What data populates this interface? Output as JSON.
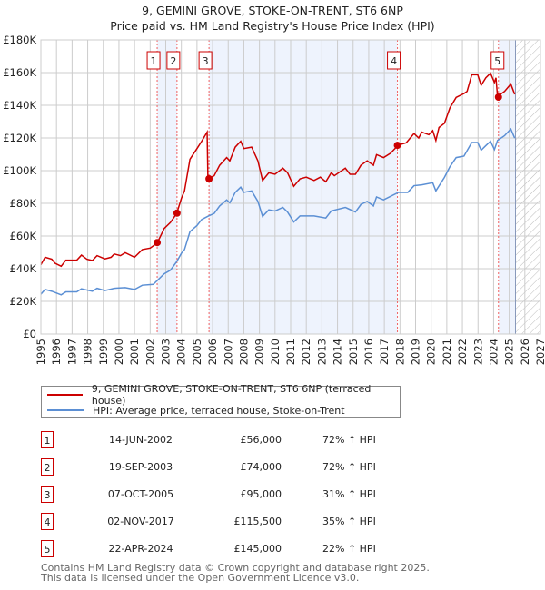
{
  "title": "9, GEMINI GROVE, STOKE-ON-TRENT, ST6 6NP",
  "subtitle": "Price paid vs. HM Land Registry's House Price Index (HPI)",
  "chart_data": {
    "type": "line",
    "title": "9, GEMINI GROVE, STOKE-ON-TRENT, ST6 6NP",
    "subtitle": "Price paid vs. HM Land Registry's House Price Index (HPI)",
    "xlim": [
      1995,
      2027
    ],
    "ylim": [
      0,
      180000
    ],
    "y_ticks": [
      0,
      20000,
      40000,
      60000,
      80000,
      100000,
      120000,
      140000,
      160000,
      180000
    ],
    "y_tick_labels": [
      "£0",
      "£20K",
      "£40K",
      "£60K",
      "£80K",
      "£100K",
      "£120K",
      "£140K",
      "£160K",
      "£180K"
    ],
    "x_ticks": [
      1995,
      1996,
      1997,
      1998,
      1999,
      2000,
      2001,
      2002,
      2003,
      2004,
      2005,
      2006,
      2007,
      2008,
      2009,
      2010,
      2011,
      2012,
      2013,
      2014,
      2015,
      2016,
      2017,
      2018,
      2019,
      2020,
      2021,
      2022,
      2023,
      2024,
      2025,
      2026,
      2027
    ],
    "grid": true,
    "forecast_hatch_from": 2025.4,
    "series": [
      {
        "name": "9, GEMINI GROVE, STOKE-ON-TRENT, ST6 6NP (terraced house)",
        "color": "#cc0000",
        "points": [
          [
            1995,
            42400
          ],
          [
            1995.27,
            47000
          ],
          [
            1995.7,
            45800
          ],
          [
            1995.9,
            43400
          ],
          [
            1996.3,
            41500
          ],
          [
            1996.6,
            45200
          ],
          [
            1997.3,
            45200
          ],
          [
            1997.6,
            48300
          ],
          [
            1997.95,
            45800
          ],
          [
            1998.3,
            45000
          ],
          [
            1998.6,
            48000
          ],
          [
            1999.1,
            46000
          ],
          [
            1999.5,
            47000
          ],
          [
            1999.7,
            49000
          ],
          [
            2000.1,
            48000
          ],
          [
            2000.4,
            49800
          ],
          [
            2001,
            47000
          ],
          [
            2001.5,
            51700
          ],
          [
            2002,
            52600
          ],
          [
            2002.45,
            55700
          ],
          [
            2002.9,
            64600
          ],
          [
            2003.3,
            68300
          ],
          [
            2003.7,
            73800
          ],
          [
            2004,
            83000
          ],
          [
            2004.2,
            87600
          ],
          [
            2004.55,
            107000
          ],
          [
            2005,
            113500
          ],
          [
            2005.3,
            118000
          ],
          [
            2005.65,
            123600
          ],
          [
            2005.7,
            95000
          ],
          [
            2006.1,
            96900
          ],
          [
            2006.45,
            103300
          ],
          [
            2006.9,
            108000
          ],
          [
            2007.1,
            106000
          ],
          [
            2007.45,
            114400
          ],
          [
            2007.8,
            118000
          ],
          [
            2008,
            113500
          ],
          [
            2008.5,
            114400
          ],
          [
            2008.9,
            106000
          ],
          [
            2009.2,
            94000
          ],
          [
            2009.6,
            98700
          ],
          [
            2010,
            97800
          ],
          [
            2010.5,
            101500
          ],
          [
            2010.8,
            98700
          ],
          [
            2011.2,
            90400
          ],
          [
            2011.6,
            95000
          ],
          [
            2012,
            96000
          ],
          [
            2012.5,
            94000
          ],
          [
            2012.9,
            96000
          ],
          [
            2013.25,
            93200
          ],
          [
            2013.6,
            98700
          ],
          [
            2013.8,
            96900
          ],
          [
            2014.5,
            101500
          ],
          [
            2014.8,
            97800
          ],
          [
            2015.15,
            97800
          ],
          [
            2015.5,
            103300
          ],
          [
            2015.9,
            106000
          ],
          [
            2016.3,
            103300
          ],
          [
            2016.5,
            109800
          ],
          [
            2016.95,
            108000
          ],
          [
            2017.4,
            110700
          ],
          [
            2017.9,
            115700
          ],
          [
            2018.4,
            117000
          ],
          [
            2018.9,
            122700
          ],
          [
            2019.2,
            120000
          ],
          [
            2019.4,
            123600
          ],
          [
            2019.85,
            122000
          ],
          [
            2020.1,
            124500
          ],
          [
            2020.3,
            118500
          ],
          [
            2020.5,
            126400
          ],
          [
            2020.85,
            129000
          ],
          [
            2021.2,
            138400
          ],
          [
            2021.6,
            144800
          ],
          [
            2022.1,
            147200
          ],
          [
            2022.3,
            148500
          ],
          [
            2022.6,
            158700
          ],
          [
            2022.98,
            158700
          ],
          [
            2023.2,
            152200
          ],
          [
            2023.5,
            156800
          ],
          [
            2023.8,
            159600
          ],
          [
            2024.05,
            154000
          ],
          [
            2024.15,
            156800
          ],
          [
            2024.25,
            145400
          ],
          [
            2024.7,
            148500
          ],
          [
            2025.1,
            153000
          ],
          [
            2025.35,
            146700
          ]
        ]
      },
      {
        "name": "HPI: Average price, terraced house, Stoke-on-Trent",
        "color": "#5b8fd4",
        "points": [
          [
            1995,
            24400
          ],
          [
            1995.27,
            27300
          ],
          [
            1995.7,
            26200
          ],
          [
            1996.3,
            24000
          ],
          [
            1996.6,
            25800
          ],
          [
            1997.3,
            25800
          ],
          [
            1997.6,
            27700
          ],
          [
            1998.3,
            26200
          ],
          [
            1998.6,
            28000
          ],
          [
            1999.1,
            26600
          ],
          [
            1999.7,
            28000
          ],
          [
            2000.4,
            28400
          ],
          [
            2001,
            27300
          ],
          [
            2001.5,
            29900
          ],
          [
            2002.2,
            30400
          ],
          [
            2002.9,
            36900
          ],
          [
            2003.3,
            39100
          ],
          [
            2003.7,
            44300
          ],
          [
            2004,
            49400
          ],
          [
            2004.2,
            51700
          ],
          [
            2004.55,
            62700
          ],
          [
            2005,
            66400
          ],
          [
            2005.3,
            70100
          ],
          [
            2005.75,
            72300
          ],
          [
            2006.1,
            73800
          ],
          [
            2006.45,
            78400
          ],
          [
            2006.9,
            82100
          ],
          [
            2007.1,
            80300
          ],
          [
            2007.45,
            86700
          ],
          [
            2007.8,
            89900
          ],
          [
            2008,
            86700
          ],
          [
            2008.5,
            87600
          ],
          [
            2008.9,
            81200
          ],
          [
            2009.2,
            72000
          ],
          [
            2009.6,
            76000
          ],
          [
            2010,
            75300
          ],
          [
            2010.5,
            77500
          ],
          [
            2010.8,
            74700
          ],
          [
            2011.2,
            68600
          ],
          [
            2011.6,
            72300
          ],
          [
            2012.5,
            72300
          ],
          [
            2013.25,
            71000
          ],
          [
            2013.6,
            75300
          ],
          [
            2014.5,
            77500
          ],
          [
            2015.15,
            74700
          ],
          [
            2015.5,
            79300
          ],
          [
            2015.9,
            81200
          ],
          [
            2016.3,
            78400
          ],
          [
            2016.5,
            83900
          ],
          [
            2016.95,
            82100
          ],
          [
            2017.9,
            86700
          ],
          [
            2018.5,
            86700
          ],
          [
            2018.9,
            90800
          ],
          [
            2019.4,
            91300
          ],
          [
            2020.1,
            92600
          ],
          [
            2020.3,
            87600
          ],
          [
            2020.85,
            95900
          ],
          [
            2021.2,
            102400
          ],
          [
            2021.6,
            108000
          ],
          [
            2022.1,
            108900
          ],
          [
            2022.6,
            117200
          ],
          [
            2022.98,
            117200
          ],
          [
            2023.2,
            112500
          ],
          [
            2023.5,
            115300
          ],
          [
            2023.8,
            118000
          ],
          [
            2024.05,
            112900
          ],
          [
            2024.25,
            118500
          ],
          [
            2024.7,
            121400
          ],
          [
            2025.1,
            125500
          ],
          [
            2025.35,
            119900
          ]
        ]
      }
    ],
    "sales": [
      {
        "label": "1",
        "x": 2002.45,
        "y": 56000
      },
      {
        "label": "2",
        "x": 2003.72,
        "y": 74000
      },
      {
        "label": "3",
        "x": 2005.77,
        "y": 95000
      },
      {
        "label": "4",
        "x": 2017.84,
        "y": 115500
      },
      {
        "label": "5",
        "x": 2024.31,
        "y": 145000
      }
    ]
  },
  "legend": {
    "property": "9, GEMINI GROVE, STOKE-ON-TRENT, ST6 6NP (terraced house)",
    "hpi": "HPI: Average price, terraced house, Stoke-on-Trent"
  },
  "transactions": [
    {
      "num": "1",
      "date": "14-JUN-2002",
      "price": "£56,000",
      "hpi": "72% ↑ HPI"
    },
    {
      "num": "2",
      "date": "19-SEP-2003",
      "price": "£74,000",
      "hpi": "72% ↑ HPI"
    },
    {
      "num": "3",
      "date": "07-OCT-2005",
      "price": "£95,000",
      "hpi": "31% ↑ HPI"
    },
    {
      "num": "4",
      "date": "02-NOV-2017",
      "price": "£115,500",
      "hpi": "35% ↑ HPI"
    },
    {
      "num": "5",
      "date": "22-APR-2024",
      "price": "£145,000",
      "hpi": "22% ↑ HPI"
    }
  ],
  "footer": {
    "line1": "Contains HM Land Registry data © Crown copyright and database right 2025.",
    "line2": "This data is licensed under the Open Government Licence v3.0."
  }
}
